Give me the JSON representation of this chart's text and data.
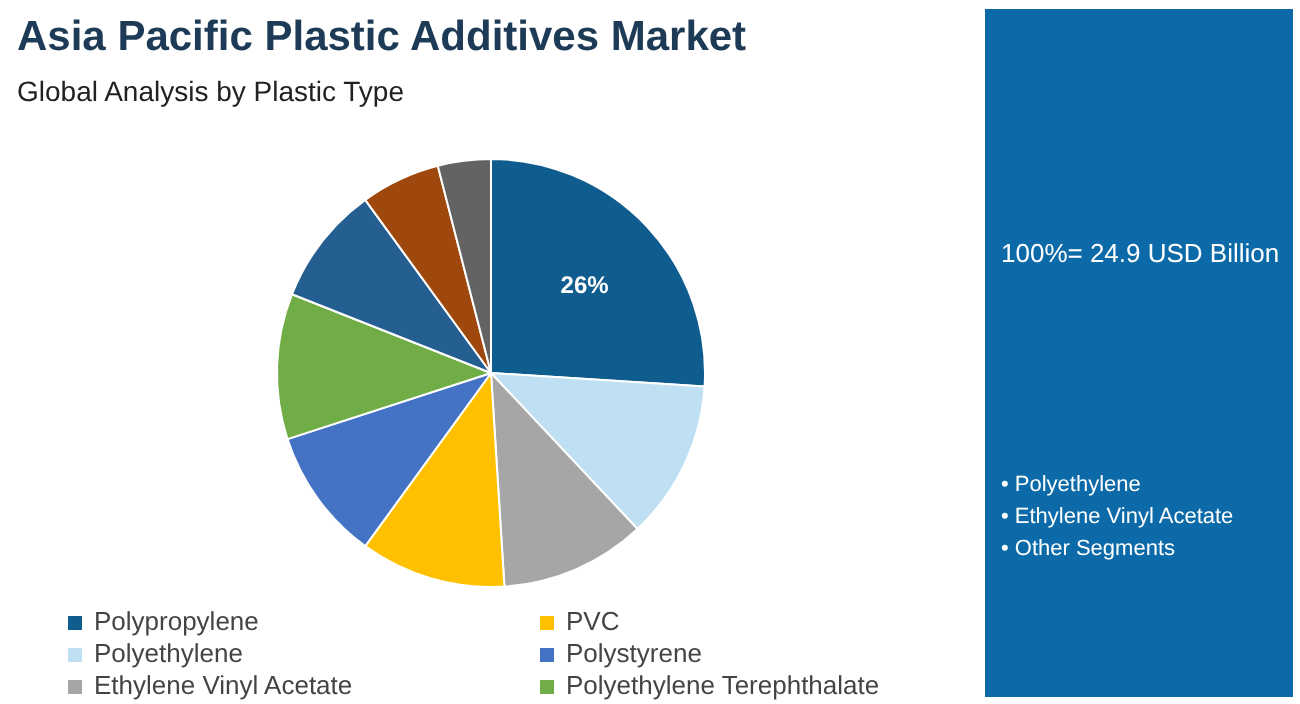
{
  "chart_data": {
    "type": "pie",
    "title": "Asia Pacific Plastic Additives Market",
    "subtitle": "Global Analysis by Plastic Type",
    "categories": [
      "Polypropylene",
      "Polyethylene",
      "Ethylene Vinyl Acetate",
      "PVC",
      "Polystyrene",
      "Polyethylene Terephthalate",
      null,
      null,
      null
    ],
    "values": [
      26,
      12,
      11,
      11,
      10,
      11,
      9,
      6,
      4
    ],
    "colors": [
      "#0f5c8e",
      "#bfe0f2",
      "#a6a6a6",
      "#ffc000",
      "#4472c4",
      "#70ad47",
      "#255e91",
      "#9e480e",
      "#636363"
    ],
    "value_labels": [
      "26%",
      null,
      null,
      null,
      null,
      null,
      null,
      null,
      null
    ],
    "legend": "bottom left",
    "annotations": [
      "100%= 24.9 USD Billion",
      "• Polyethylene",
      "• Ethylene Vinyl Acetate",
      "• Other Segments"
    ]
  }
}
